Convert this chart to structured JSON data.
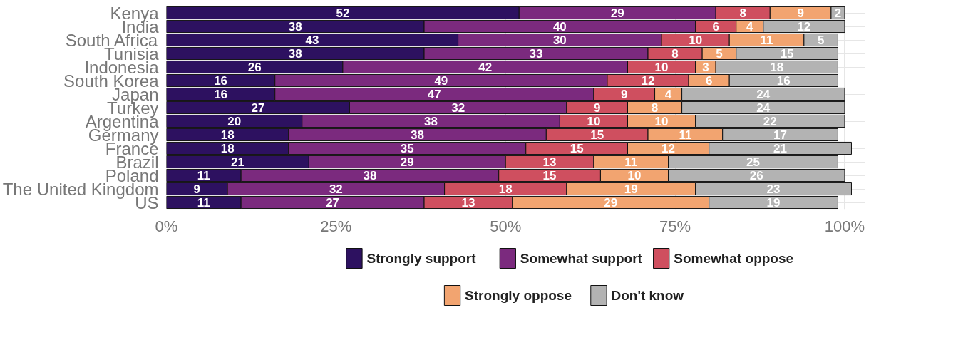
{
  "chart_data": {
    "type": "bar",
    "orientation": "horizontal",
    "stacked": true,
    "data_labels": true,
    "grid": true,
    "legend": "bottom",
    "categories": [
      "Kenya",
      "India",
      "South Africa",
      "Tunisia",
      "Indonesia",
      "South Korea",
      "Japan",
      "Turkey",
      "Argentina",
      "Germany",
      "France",
      "Brazil",
      "Poland",
      "The United Kingdom",
      "US"
    ],
    "xlim": [
      0,
      103
    ],
    "xticks": [
      {
        "value": 0,
        "label": "0%"
      },
      {
        "value": 25,
        "label": "25%"
      },
      {
        "value": 50,
        "label": "50%"
      },
      {
        "value": 75,
        "label": "75%"
      },
      {
        "value": 100,
        "label": "100%"
      }
    ],
    "series": [
      {
        "name": "Strongly support",
        "color": "#2d1160",
        "values": [
          52,
          38,
          43,
          38,
          26,
          16,
          16,
          27,
          20,
          18,
          18,
          21,
          11,
          9,
          11
        ]
      },
      {
        "name": "Somewhat support",
        "color": "#7b2a7e",
        "values": [
          29,
          40,
          30,
          33,
          42,
          49,
          47,
          32,
          38,
          38,
          35,
          29,
          38,
          32,
          27
        ]
      },
      {
        "name": "Somewhat oppose",
        "color": "#cf4f5f",
        "values": [
          8,
          6,
          10,
          8,
          10,
          12,
          9,
          9,
          10,
          15,
          15,
          13,
          15,
          18,
          13
        ]
      },
      {
        "name": "Strongly oppose",
        "color": "#f2a470",
        "values": [
          9,
          4,
          11,
          5,
          3,
          6,
          4,
          8,
          10,
          11,
          12,
          11,
          10,
          19,
          29
        ]
      },
      {
        "name": "Don't know",
        "color": "#b3b3b3",
        "values": [
          2,
          12,
          5,
          15,
          18,
          16,
          24,
          24,
          22,
          17,
          21,
          25,
          26,
          23,
          19
        ]
      }
    ]
  }
}
